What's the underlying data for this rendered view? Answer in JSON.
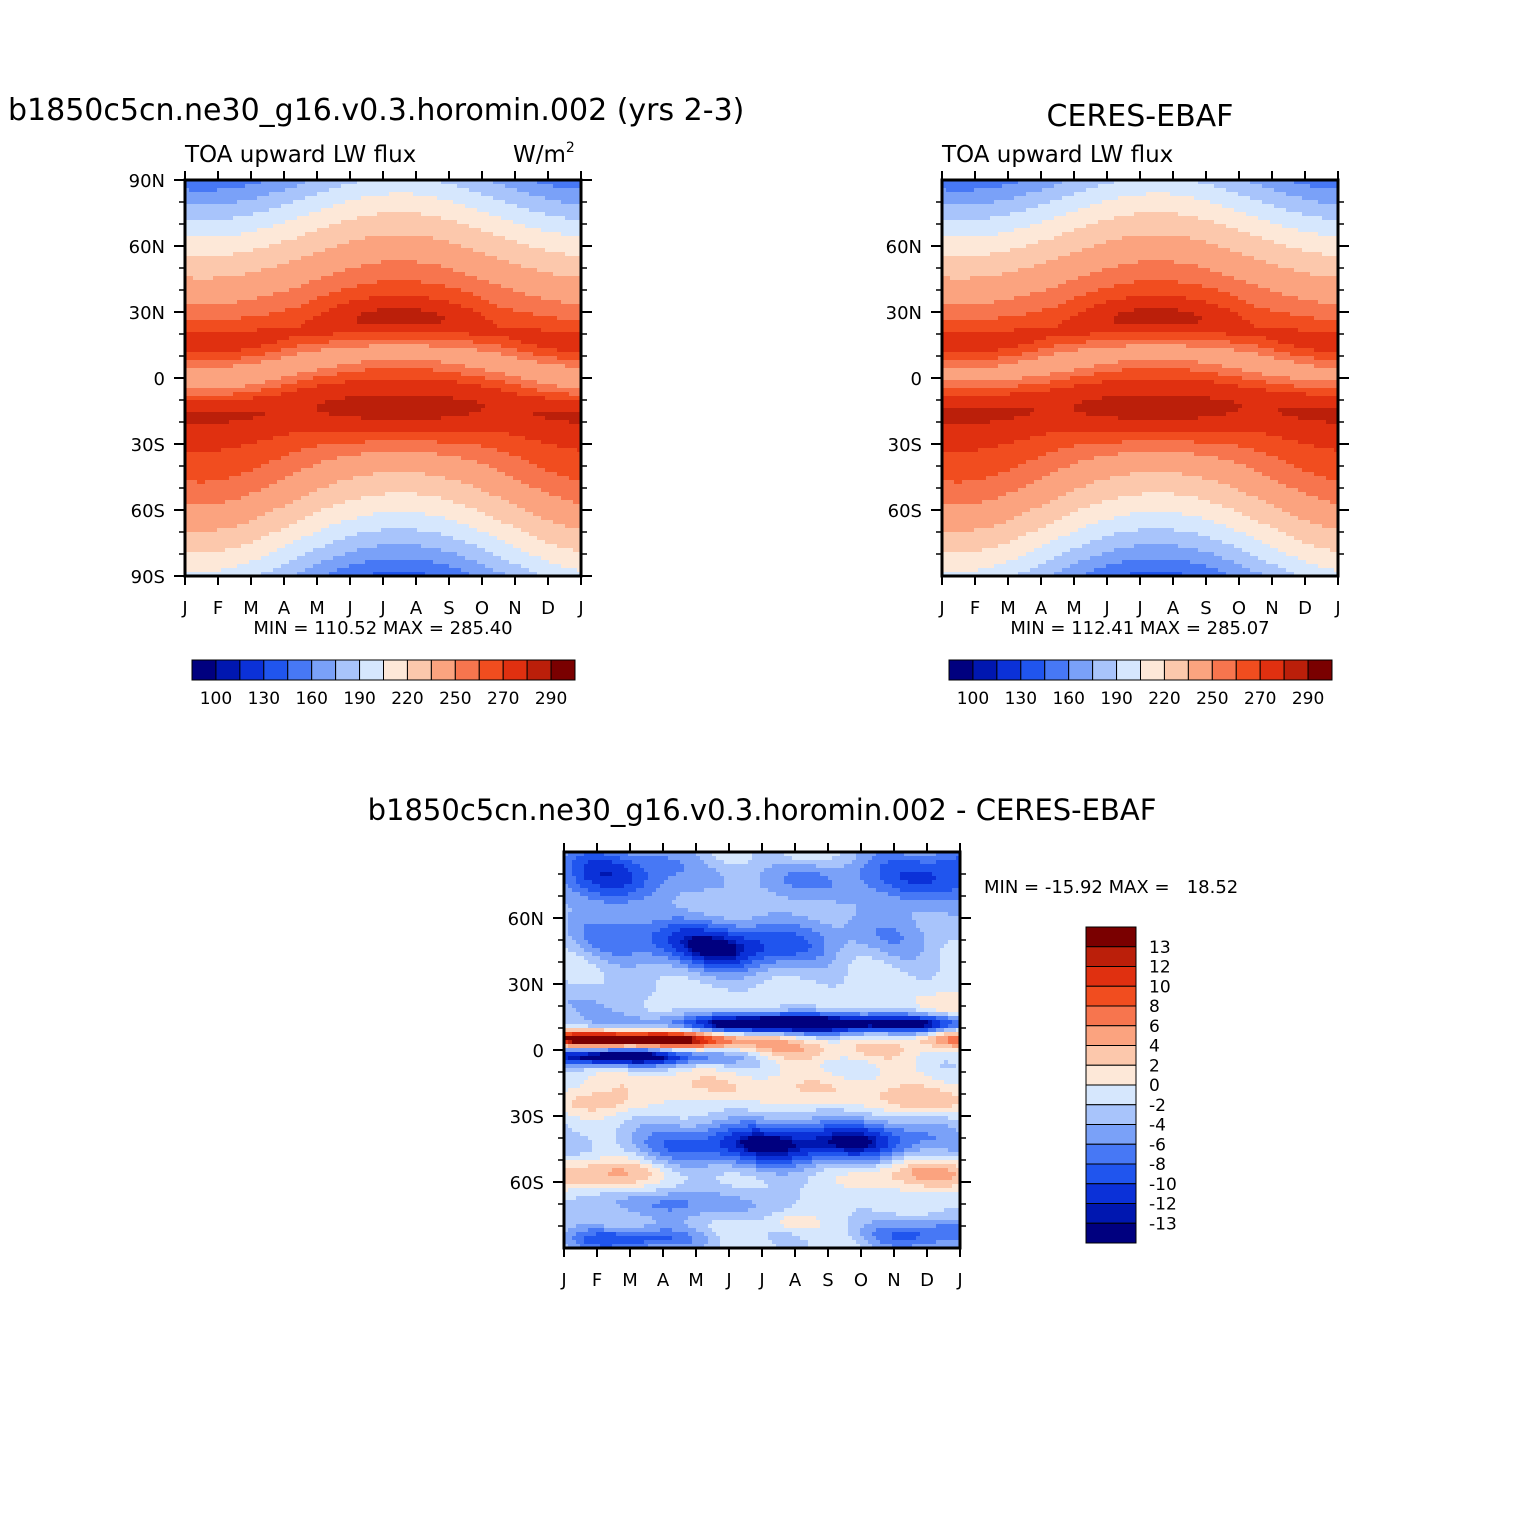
{
  "panels": [
    {
      "id": "model",
      "title": "b1850c5cn.ne30_g16.v0.3.horomin.002 (yrs 2-3)",
      "subtitle": "TOA upward LW flux",
      "units": "W/m",
      "units_sup": "2",
      "stats": "MIN = 110.52 MAX = 285.40",
      "y_ticks": [
        "90N",
        "60N",
        "30N",
        "0",
        "30S",
        "60S",
        "90S"
      ],
      "x_ticks": [
        "J",
        "F",
        "M",
        "A",
        "M",
        "J",
        "J",
        "A",
        "S",
        "O",
        "N",
        "D",
        "J"
      ],
      "colorbar_labels": [
        "100",
        "130",
        "160",
        "190",
        "220",
        "250",
        "270",
        "290"
      ]
    },
    {
      "id": "obs",
      "title": "CERES-EBAF",
      "subtitle": "TOA upward LW flux",
      "stats": "MIN = 112.41 MAX = 285.07",
      "y_ticks": [
        "60N",
        "30N",
        "0",
        "30S",
        "60S"
      ],
      "x_ticks": [
        "J",
        "F",
        "M",
        "A",
        "M",
        "J",
        "J",
        "A",
        "S",
        "O",
        "N",
        "D",
        "J"
      ],
      "colorbar_labels": [
        "100",
        "130",
        "160",
        "190",
        "220",
        "250",
        "270",
        "290"
      ]
    },
    {
      "id": "diff",
      "title": "b1850c5cn.ne30_g16.v0.3.horomin.002 - CERES-EBAF",
      "stats": "MIN = -15.92 MAX =   18.52",
      "y_ticks": [
        "60N",
        "30N",
        "0",
        "30S",
        "60S"
      ],
      "x_ticks": [
        "J",
        "F",
        "M",
        "A",
        "M",
        "J",
        "J",
        "A",
        "S",
        "O",
        "N",
        "D",
        "J"
      ],
      "colorbar_labels": [
        "13",
        "12",
        "10",
        "8",
        "6",
        "4",
        "2",
        "0",
        "-2",
        "-4",
        "-6",
        "-8",
        "-10",
        "-12",
        "-13"
      ]
    }
  ],
  "palette_abs": [
    "#00007f",
    "#0017b0",
    "#0b31d8",
    "#2055ee",
    "#4778f5",
    "#7aa1f8",
    "#a8c4fb",
    "#d6e7fd",
    "#fde8d8",
    "#fcc8ac",
    "#fba37f",
    "#f7754e",
    "#f14d1f",
    "#e03010",
    "#bb1f0a",
    "#7a0000"
  ],
  "palette_diff": [
    "#00007f",
    "#0017b0",
    "#0b31d8",
    "#2055ee",
    "#4778f5",
    "#7aa1f8",
    "#a8c4fb",
    "#d6e7fd",
    "#fde8d8",
    "#fcc8ac",
    "#fba37f",
    "#f7754e",
    "#f14d1f",
    "#e03010",
    "#bb1f0a",
    "#7a0000"
  ],
  "chart_data": [
    {
      "type": "heatmap",
      "title": "b1850c5cn.ne30_g16.v0.3.horomin.002 (yrs 2-3)",
      "variable": "TOA upward LW flux",
      "units": "W/m2",
      "x": "month",
      "x_ticks": [
        "J",
        "F",
        "M",
        "A",
        "M",
        "J",
        "J",
        "A",
        "S",
        "O",
        "N",
        "D",
        "J"
      ],
      "y": "latitude",
      "ylim": [
        -90,
        90
      ],
      "levels": [
        100,
        115,
        130,
        145,
        160,
        175,
        190,
        205,
        220,
        235,
        250,
        260,
        270,
        280,
        290
      ],
      "min": 110.52,
      "max": 285.4
    },
    {
      "type": "heatmap",
      "title": "CERES-EBAF",
      "variable": "TOA upward LW flux",
      "x_ticks": [
        "J",
        "F",
        "M",
        "A",
        "M",
        "J",
        "J",
        "A",
        "S",
        "O",
        "N",
        "D",
        "J"
      ],
      "ylim": [
        -90,
        90
      ],
      "levels": [
        100,
        115,
        130,
        145,
        160,
        175,
        190,
        205,
        220,
        235,
        250,
        260,
        270,
        280,
        290
      ],
      "min": 112.41,
      "max": 285.07
    },
    {
      "type": "heatmap",
      "title": "b1850c5cn.ne30_g16.v0.3.horomin.002 - CERES-EBAF",
      "x_ticks": [
        "J",
        "F",
        "M",
        "A",
        "M",
        "J",
        "J",
        "A",
        "S",
        "O",
        "N",
        "D",
        "J"
      ],
      "ylim": [
        -90,
        90
      ],
      "levels": [
        -13,
        -12,
        -10,
        -8,
        -6,
        -4,
        -2,
        0,
        2,
        4,
        6,
        8,
        10,
        12,
        13
      ],
      "min": -15.92,
      "max": 18.52
    }
  ]
}
